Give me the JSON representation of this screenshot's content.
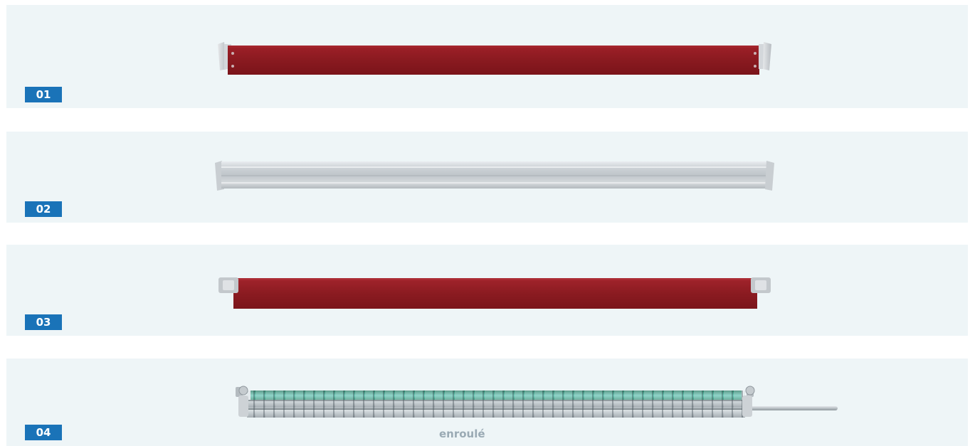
{
  "badge_color": "#1a73b8",
  "panel_color": "#eef5f7",
  "items": [
    {
      "number": "01",
      "icon": "red-steel-toeboard-icon",
      "color": "#8c1a1f"
    },
    {
      "number": "02",
      "icon": "aluminium-toeboard-icon",
      "color": "#c8cdd2"
    },
    {
      "number": "03",
      "icon": "red-wooden-toeboard-icon",
      "color": "#8c1a1f"
    },
    {
      "number": "04",
      "icon": "rolled-safety-net-icon",
      "color": "#2e8a6e",
      "caption": "enroulé"
    }
  ]
}
